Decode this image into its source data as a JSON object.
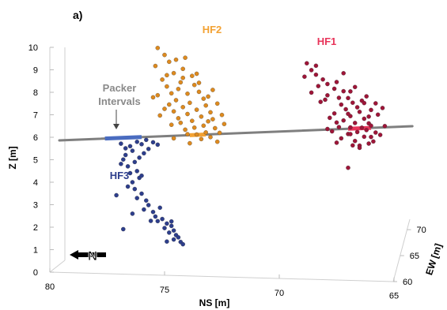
{
  "chart_data": {
    "type": "scatter",
    "panel_label": "a)",
    "xlabel": "NS [m]",
    "ylabel": "Z [m]",
    "zlabel": "EW [m]",
    "x_ticks": [
      "80",
      "75",
      "70",
      "65"
    ],
    "x_tick_values": [
      80,
      75,
      70,
      65
    ],
    "y_ticks": [
      "0",
      "1",
      "2",
      "3",
      "4",
      "5",
      "6",
      "7",
      "8",
      "9",
      "10"
    ],
    "y_tick_values": [
      0,
      1,
      2,
      3,
      4,
      5,
      6,
      7,
      8,
      9,
      10
    ],
    "z_ticks": [
      "60",
      "65",
      "70"
    ],
    "z_tick_values": [
      60,
      65,
      70
    ],
    "xlim": [
      80,
      65
    ],
    "ylim": [
      0,
      10.5
    ],
    "zlim": [
      60,
      72
    ],
    "north_symbol": "N",
    "borehole": {
      "color": "#7f7f7f",
      "note": "Packer Intervals",
      "note_lines": [
        "Packer",
        "Intervals"
      ]
    },
    "colors": {
      "HF1": "#9e1538",
      "HF2": "#de8a1e",
      "HF3": "#2d3e8c",
      "packer": "#4a6cc0",
      "packer_hf1": "#e8345a",
      "packer_hf2": "#f3a233"
    },
    "series": [
      {
        "name": "HF1",
        "label": "HF1",
        "color": "#9e1538",
        "points": [
          [
            68.8,
            9.6
          ],
          [
            68.6,
            9.3
          ],
          [
            68.4,
            9.1
          ],
          [
            68.1,
            8.9
          ],
          [
            68.9,
            9.0
          ],
          [
            67.5,
            8.8
          ],
          [
            68.3,
            8.6
          ],
          [
            67.6,
            8.5
          ],
          [
            67.2,
            8.4
          ],
          [
            68.6,
            8.3
          ],
          [
            67.9,
            8.2
          ],
          [
            67.4,
            8.1
          ],
          [
            67.0,
            8.1
          ],
          [
            66.4,
            8.0
          ],
          [
            66.8,
            7.9
          ],
          [
            67.3,
            7.8
          ],
          [
            66.6,
            7.7
          ],
          [
            67.1,
            7.6
          ],
          [
            66.0,
            7.6
          ],
          [
            66.5,
            7.5
          ],
          [
            67.6,
            7.4
          ],
          [
            65.7,
            7.4
          ],
          [
            66.9,
            7.3
          ],
          [
            66.3,
            7.2
          ],
          [
            67.2,
            7.1
          ],
          [
            66.7,
            7.0
          ],
          [
            66.1,
            7.0
          ],
          [
            65.4,
            6.9
          ],
          [
            66.9,
            6.8
          ],
          [
            67.4,
            6.8
          ],
          [
            66.2,
            6.7
          ],
          [
            66.6,
            6.6
          ],
          [
            65.8,
            6.6
          ],
          [
            67.0,
            6.5
          ],
          [
            66.3,
            6.4
          ],
          [
            66.0,
            6.4
          ],
          [
            67.3,
            6.3
          ],
          [
            66.7,
            6.2
          ],
          [
            66.1,
            6.1
          ],
          [
            66.5,
            6.0
          ],
          [
            67.9,
            8.7
          ],
          [
            66.9,
            8.4
          ],
          [
            66.1,
            7.3
          ],
          [
            67.8,
            7.2
          ],
          [
            65.9,
            6.2
          ],
          [
            66.5,
            5.9
          ],
          [
            67.0,
            5.0
          ],
          [
            68.2,
            7.9
          ],
          [
            67.5,
            7.0
          ],
          [
            65.6,
            6.5
          ],
          [
            66.4,
            6.8
          ],
          [
            67.7,
            6.6
          ],
          [
            66.8,
            6.0
          ],
          [
            68.0,
            8.0
          ],
          [
            67.2,
            9.2
          ],
          [
            65.8,
            7.9
          ],
          [
            66.3,
            7.9
          ],
          [
            67.0,
            7.4
          ],
          [
            66.0,
            6.9
          ],
          [
            67.5,
            6.1
          ],
          [
            68.4,
            9.5
          ],
          [
            66.7,
            8.6
          ],
          [
            66.2,
            8.2
          ],
          [
            65.5,
            7.7
          ],
          [
            67.9,
            6.7
          ],
          [
            66.9,
            6.5
          ]
        ]
      },
      {
        "name": "HF2",
        "label": "HF2",
        "color": "#de8a1e",
        "points": [
          [
            75.3,
            10.1
          ],
          [
            75.0,
            9.8
          ],
          [
            74.8,
            9.5
          ],
          [
            75.4,
            9.3
          ],
          [
            74.2,
            9.2
          ],
          [
            74.6,
            9.0
          ],
          [
            73.8,
            8.9
          ],
          [
            75.1,
            8.7
          ],
          [
            74.3,
            8.6
          ],
          [
            73.7,
            8.5
          ],
          [
            74.9,
            8.4
          ],
          [
            74.4,
            8.3
          ],
          [
            73.5,
            8.2
          ],
          [
            74.7,
            8.1
          ],
          [
            74.0,
            8.1
          ],
          [
            75.3,
            8.0
          ],
          [
            73.3,
            7.9
          ],
          [
            74.5,
            7.8
          ],
          [
            73.9,
            7.7
          ],
          [
            74.8,
            7.6
          ],
          [
            73.2,
            7.6
          ],
          [
            74.2,
            7.5
          ],
          [
            73.6,
            7.4
          ],
          [
            74.6,
            7.3
          ],
          [
            73.0,
            7.3
          ],
          [
            74.0,
            7.2
          ],
          [
            73.4,
            7.1
          ],
          [
            74.4,
            7.0
          ],
          [
            72.9,
            7.0
          ],
          [
            73.8,
            6.9
          ],
          [
            74.3,
            6.8
          ],
          [
            73.3,
            6.7
          ],
          [
            72.8,
            6.6
          ],
          [
            73.7,
            6.6
          ],
          [
            74.1,
            6.5
          ],
          [
            73.2,
            6.4
          ],
          [
            72.6,
            6.4
          ],
          [
            73.6,
            6.3
          ],
          [
            73.0,
            6.2
          ],
          [
            72.7,
            6.0
          ],
          [
            73.4,
            6.1
          ],
          [
            74.7,
            6.7
          ],
          [
            74.9,
            8.9
          ],
          [
            73.1,
            8.0
          ],
          [
            75.5,
            7.9
          ],
          [
            72.7,
            7.7
          ],
          [
            74.1,
            9.7
          ],
          [
            73.6,
            9.0
          ],
          [
            72.4,
            6.8
          ],
          [
            74.6,
            6.1
          ],
          [
            73.9,
            5.9
          ],
          [
            75.2,
            7.1
          ],
          [
            72.5,
            7.2
          ],
          [
            74.2,
            8.8
          ],
          [
            73.5,
            8.6
          ],
          [
            74.5,
            9.6
          ],
          [
            73.1,
            6.9
          ],
          [
            74.0,
            6.3
          ],
          [
            72.9,
            8.3
          ],
          [
            75.0,
            7.4
          ]
        ]
      },
      {
        "name": "HF3",
        "label": "HF3",
        "color": "#2d3e8c",
        "points": [
          [
            75.8,
            6.0
          ],
          [
            75.5,
            5.9
          ],
          [
            76.2,
            5.9
          ],
          [
            75.3,
            5.8
          ],
          [
            76.0,
            5.8
          ],
          [
            76.5,
            5.7
          ],
          [
            75.7,
            5.6
          ],
          [
            76.4,
            5.5
          ],
          [
            75.9,
            5.4
          ],
          [
            76.7,
            5.3
          ],
          [
            76.1,
            5.2
          ],
          [
            76.8,
            5.1
          ],
          [
            76.3,
            5.0
          ],
          [
            76.9,
            4.9
          ],
          [
            76.6,
            4.8
          ],
          [
            76.2,
            4.6
          ],
          [
            76.5,
            4.5
          ],
          [
            76.1,
            4.3
          ],
          [
            76.4,
            4.1
          ],
          [
            76.6,
            3.9
          ],
          [
            76.3,
            3.8
          ],
          [
            76.0,
            3.6
          ],
          [
            76.2,
            3.4
          ],
          [
            75.8,
            3.3
          ],
          [
            75.7,
            3.1
          ],
          [
            75.9,
            2.9
          ],
          [
            75.5,
            2.8
          ],
          [
            75.4,
            2.6
          ],
          [
            75.1,
            2.5
          ],
          [
            75.3,
            2.4
          ],
          [
            74.9,
            2.3
          ],
          [
            74.7,
            2.2
          ],
          [
            75.0,
            2.1
          ],
          [
            74.6,
            2.0
          ],
          [
            74.8,
            1.9
          ],
          [
            74.5,
            1.8
          ],
          [
            74.4,
            1.7
          ],
          [
            74.6,
            1.6
          ],
          [
            74.3,
            1.5
          ],
          [
            74.2,
            1.4
          ],
          [
            76.8,
            2.0
          ],
          [
            77.1,
            3.5
          ],
          [
            74.9,
            1.5
          ],
          [
            76.0,
            4.4
          ],
          [
            76.7,
            5.6
          ],
          [
            75.6,
            2.4
          ],
          [
            74.7,
            2.4
          ],
          [
            76.9,
            5.8
          ],
          [
            75.2,
            3.0
          ],
          [
            76.4,
            2.7
          ]
        ]
      }
    ],
    "packer_intervals": [
      {
        "from": 77.6,
        "to": 76.0,
        "z": 6.0,
        "color": "#4a6cc0"
      },
      {
        "from": 73.9,
        "to": 73.2,
        "z": 6.4,
        "color": "#f3a233"
      },
      {
        "from": 67.0,
        "to": 66.0,
        "z": 6.5,
        "color": "#e8345a"
      }
    ]
  }
}
